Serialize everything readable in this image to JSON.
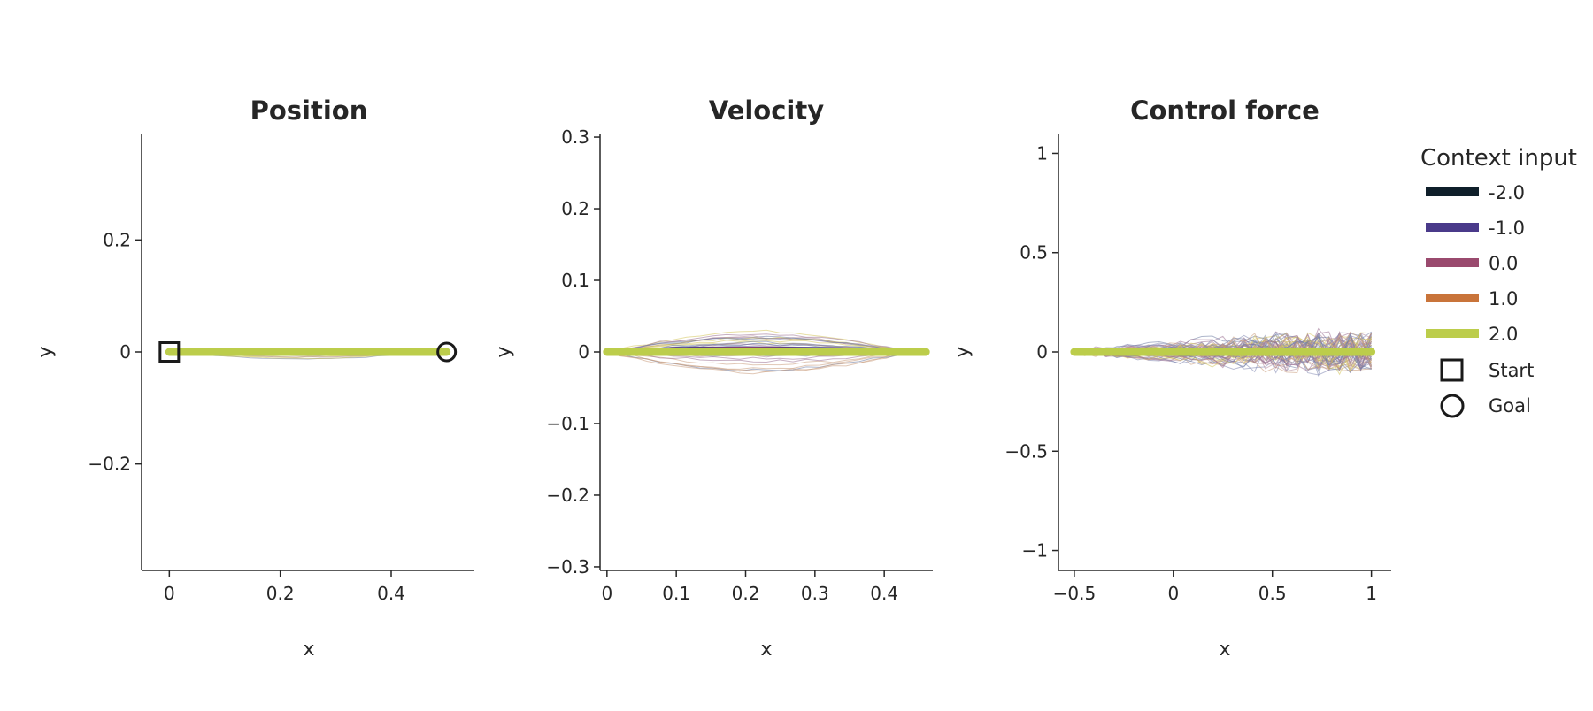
{
  "chart_data": [
    {
      "type": "line",
      "title": "Position",
      "xlabel": "x",
      "ylabel": "y",
      "xlim": [
        -0.05,
        0.55
      ],
      "ylim": [
        -0.39,
        0.39
      ],
      "xticks": [
        0,
        0.2,
        0.4
      ],
      "xtick_labels": [
        "0",
        "0.2",
        "0.4"
      ],
      "yticks": [
        -0.2,
        0,
        0.2
      ],
      "ytick_labels": [
        "−0.2",
        "0",
        "0.2"
      ],
      "series": [
        {
          "name": "-2.0",
          "x": [
            0,
            0.1,
            0.2,
            0.3,
            0.4,
            0.5
          ],
          "y": [
            0,
            0.001,
            0.001,
            0.001,
            0.001,
            0
          ]
        },
        {
          "name": "-1.0",
          "x": [
            0,
            0.1,
            0.2,
            0.3,
            0.4,
            0.5
          ],
          "y": [
            0,
            0.002,
            0.002,
            0.002,
            0.001,
            0
          ]
        },
        {
          "name": "0.0",
          "x": [
            0,
            0.1,
            0.2,
            0.3,
            0.4,
            0.5
          ],
          "y": [
            0,
            0.001,
            0.002,
            0.001,
            0.001,
            0
          ]
        },
        {
          "name": "1.0",
          "x": [
            0,
            0.1,
            0.2,
            0.3,
            0.4,
            0.5
          ],
          "y": [
            0,
            0.001,
            0.001,
            0.001,
            0.0,
            0
          ]
        },
        {
          "name": "2.0",
          "x": [
            0,
            0.1,
            0.2,
            0.3,
            0.4,
            0.5
          ],
          "y": [
            0,
            0.0,
            0.0,
            0.0,
            0.0,
            0
          ]
        }
      ],
      "markers": {
        "start": [
          0,
          0
        ],
        "goal": [
          0.5,
          0
        ]
      }
    },
    {
      "type": "line",
      "title": "Velocity",
      "xlabel": "x",
      "ylabel": "y",
      "xlim": [
        -0.01,
        0.47
      ],
      "ylim": [
        -0.305,
        0.305
      ],
      "xticks": [
        0,
        0.1,
        0.2,
        0.3,
        0.4
      ],
      "xtick_labels": [
        "0",
        "0.1",
        "0.2",
        "0.3",
        "0.4"
      ],
      "yticks": [
        -0.3,
        -0.2,
        -0.1,
        0,
        0.1,
        0.2,
        0.3
      ],
      "ytick_labels": [
        "−0.3",
        "−0.2",
        "−0.1",
        "0",
        "0.1",
        "0.2",
        "0.3"
      ],
      "series": [
        {
          "name": "-2.0",
          "x": [
            0,
            0.1,
            0.2,
            0.3,
            0.4,
            0.46
          ],
          "y": [
            0,
            0.002,
            0.003,
            0.002,
            0.001,
            0
          ]
        },
        {
          "name": "-1.0",
          "x": [
            0,
            0.1,
            0.2,
            0.3,
            0.4,
            0.46
          ],
          "y": [
            0,
            0.004,
            0.005,
            0.004,
            0.002,
            0
          ]
        },
        {
          "name": "0.0",
          "x": [
            0,
            0.1,
            0.2,
            0.3,
            0.4,
            0.46
          ],
          "y": [
            0,
            0.003,
            0.004,
            0.003,
            0.002,
            0
          ]
        },
        {
          "name": "1.0",
          "x": [
            0,
            0.1,
            0.2,
            0.3,
            0.4,
            0.46
          ],
          "y": [
            0,
            0.002,
            0.002,
            0.002,
            0.001,
            0
          ]
        },
        {
          "name": "2.0",
          "x": [
            0,
            0.1,
            0.2,
            0.3,
            0.4,
            0.46
          ],
          "y": [
            0,
            0.0,
            0.0,
            0.0,
            0.0,
            0
          ]
        }
      ]
    },
    {
      "type": "line",
      "title": "Control force",
      "xlabel": "x",
      "ylabel": "y",
      "xlim": [
        -0.58,
        1.1
      ],
      "ylim": [
        -1.1,
        1.1
      ],
      "xticks": [
        -0.5,
        0,
        0.5,
        1
      ],
      "xtick_labels": [
        "−0.5",
        "0",
        "0.5",
        "1"
      ],
      "yticks": [
        -1,
        -0.5,
        0,
        0.5,
        1
      ],
      "ytick_labels": [
        "−1",
        "−0.5",
        "0",
        "0.5",
        "1"
      ],
      "series": [
        {
          "name": "-2.0",
          "x": [
            -0.5,
            -0.25,
            0,
            0.25,
            0.5,
            0.75,
            1.0
          ],
          "y": [
            0,
            0.005,
            -0.003,
            0.004,
            0.003,
            0.002,
            0
          ]
        },
        {
          "name": "-1.0",
          "x": [
            -0.5,
            -0.25,
            0,
            0.25,
            0.5,
            0.75,
            1.0
          ],
          "y": [
            0,
            0.008,
            -0.006,
            0.01,
            0.006,
            0.004,
            0
          ]
        },
        {
          "name": "0.0",
          "x": [
            -0.5,
            -0.25,
            0,
            0.25,
            0.5,
            0.75,
            1.0
          ],
          "y": [
            0,
            0.006,
            -0.004,
            0.008,
            0.005,
            0.003,
            0
          ]
        },
        {
          "name": "1.0",
          "x": [
            -0.5,
            -0.25,
            0,
            0.25,
            0.5,
            0.75,
            1.0
          ],
          "y": [
            0,
            0.004,
            -0.002,
            0.005,
            0.003,
            0.002,
            0
          ]
        },
        {
          "name": "2.0",
          "x": [
            -0.5,
            -0.25,
            0,
            0.25,
            0.5,
            0.75,
            1.0
          ],
          "y": [
            0,
            0.0,
            0.0,
            0.0,
            0.0,
            0.0,
            0
          ]
        }
      ]
    }
  ],
  "legend": {
    "title": "Context input",
    "placement": "right",
    "entries": [
      {
        "label": "-2.0",
        "color": "#0f1f2a"
      },
      {
        "label": "-1.0",
        "color": "#4a3a8a"
      },
      {
        "label": "0.0",
        "color": "#9a4a6e"
      },
      {
        "label": "1.0",
        "color": "#c9743a"
      },
      {
        "label": "2.0",
        "color": "#bccd4b"
      }
    ],
    "start_label": "Start",
    "goal_label": "Goal"
  },
  "colors": {
    "axis": "#262626",
    "noise_trials": [
      "#6b7aa1",
      "#9a6f92",
      "#c89b7a",
      "#d4c55a",
      "#7f86b0",
      "#b28a9b"
    ]
  }
}
